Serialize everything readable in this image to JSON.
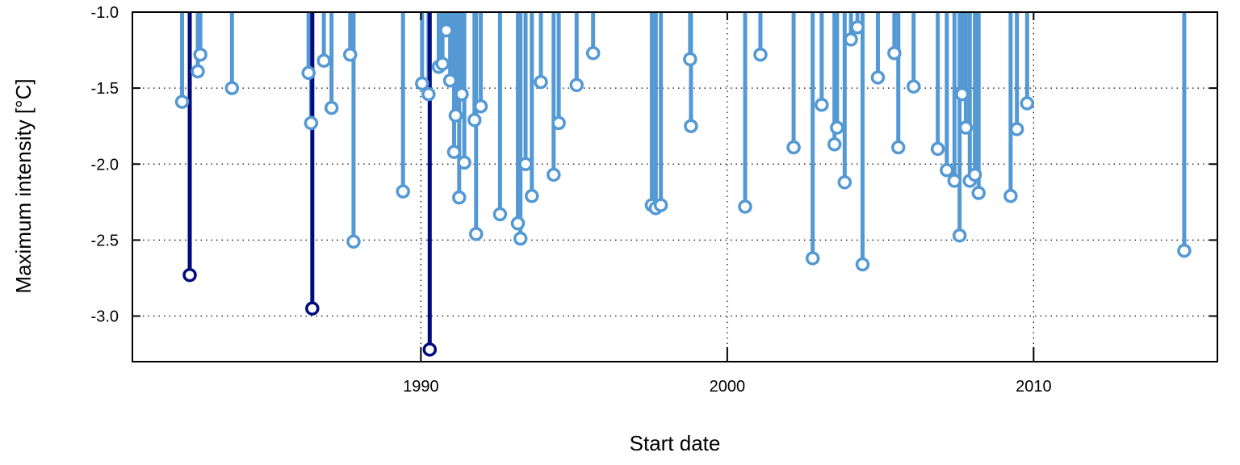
{
  "chart_data": {
    "type": "scatter",
    "style": "lollipop (stems from y=-1.0 down to each point)",
    "xlabel": "Start date",
    "ylabel": "Maximum intensity [°C]",
    "xlim": [
      "1980-08-01",
      "2015-12-31"
    ],
    "ylim": [
      -3.3,
      -1.0
    ],
    "x_ticks": [
      "1990",
      "2000",
      "2010"
    ],
    "y_ticks": [
      "-1.0",
      "-1.5",
      "-2.0",
      "-2.5",
      "-3.0"
    ],
    "grid": true,
    "legend": "none",
    "colors": {
      "events": "#5499d4",
      "top_events": "#000c7d"
    },
    "series": [
      {
        "points": [
          {
            "x": "1982-03-15",
            "y": -1.59
          },
          {
            "x": "1982-09-20",
            "y": -1.39
          },
          {
            "x": "1982-10-20",
            "y": -1.28
          },
          {
            "x": "1983-11-01",
            "y": -1.5
          },
          {
            "x": "1986-05-01",
            "y": -1.4
          },
          {
            "x": "1986-06-01",
            "y": -1.73
          },
          {
            "x": "1986-11-01",
            "y": -1.32
          },
          {
            "x": "1987-02-01",
            "y": -1.63
          },
          {
            "x": "1987-09-10",
            "y": -1.28
          },
          {
            "x": "1987-10-20",
            "y": -2.51
          },
          {
            "x": "1989-06-01",
            "y": -2.18
          },
          {
            "x": "1990-01-15",
            "y": -1.47
          },
          {
            "x": "1990-04-01",
            "y": -1.54
          },
          {
            "x": "1990-08-01",
            "y": -1.36
          },
          {
            "x": "1990-09-15",
            "y": -1.34
          },
          {
            "x": "1990-11-01",
            "y": -1.12
          },
          {
            "x": "1990-12-15",
            "y": -1.45
          },
          {
            "x": "1991-02-01",
            "y": -1.92
          },
          {
            "x": "1991-02-20",
            "y": -1.68
          },
          {
            "x": "1991-04-01",
            "y": -2.22
          },
          {
            "x": "1991-05-01",
            "y": -1.54
          },
          {
            "x": "1991-06-01",
            "y": -1.99
          },
          {
            "x": "1991-10-01",
            "y": -1.71
          },
          {
            "x": "1991-10-20",
            "y": -2.46
          },
          {
            "x": "1991-12-15",
            "y": -1.62
          },
          {
            "x": "1992-08-01",
            "y": -2.33
          },
          {
            "x": "1993-03-01",
            "y": -2.39
          },
          {
            "x": "1993-04-01",
            "y": -2.49
          },
          {
            "x": "1993-06-01",
            "y": -2.0
          },
          {
            "x": "1993-08-15",
            "y": -2.21
          },
          {
            "x": "1993-12-01",
            "y": -1.46
          },
          {
            "x": "1994-05-01",
            "y": -2.07
          },
          {
            "x": "1994-07-01",
            "y": -1.73
          },
          {
            "x": "1995-02-01",
            "y": -1.48
          },
          {
            "x": "1995-08-15",
            "y": -1.27
          },
          {
            "x": "1997-07-15",
            "y": -2.27
          },
          {
            "x": "1997-09-01",
            "y": -2.29
          },
          {
            "x": "1997-11-01",
            "y": -2.27
          },
          {
            "x": "1998-10-15",
            "y": -1.31
          },
          {
            "x": "1998-10-25",
            "y": -1.75
          },
          {
            "x": "2000-08-01",
            "y": -2.28
          },
          {
            "x": "2001-02-01",
            "y": -1.28
          },
          {
            "x": "2002-03-01",
            "y": -1.89
          },
          {
            "x": "2002-10-15",
            "y": -2.62
          },
          {
            "x": "2003-02-01",
            "y": -1.61
          },
          {
            "x": "2003-07-01",
            "y": -1.87
          },
          {
            "x": "2003-08-01",
            "y": -1.76
          },
          {
            "x": "2003-11-01",
            "y": -2.12
          },
          {
            "x": "2004-01-15",
            "y": -1.18
          },
          {
            "x": "2004-04-01",
            "y": -1.1
          },
          {
            "x": "2004-06-01",
            "y": -2.66
          },
          {
            "x": "2004-12-01",
            "y": -1.43
          },
          {
            "x": "2005-06-15",
            "y": -1.27
          },
          {
            "x": "2005-08-01",
            "y": -1.89
          },
          {
            "x": "2006-02-01",
            "y": -1.49
          },
          {
            "x": "2006-11-15",
            "y": -1.9
          },
          {
            "x": "2007-03-01",
            "y": -2.04
          },
          {
            "x": "2007-06-01",
            "y": -2.11
          },
          {
            "x": "2007-08-01",
            "y": -2.47
          },
          {
            "x": "2007-09-01",
            "y": -1.54
          },
          {
            "x": "2007-10-15",
            "y": -1.76
          },
          {
            "x": "2007-12-01",
            "y": -2.11
          },
          {
            "x": "2008-02-01",
            "y": -2.07
          },
          {
            "x": "2008-03-15",
            "y": -2.19
          },
          {
            "x": "2009-04-01",
            "y": -2.21
          },
          {
            "x": "2009-06-15",
            "y": -1.77
          },
          {
            "x": "2009-10-15",
            "y": -1.6
          },
          {
            "x": "2014-12-01",
            "y": -2.57
          }
        ]
      },
      {
        "points": [
          {
            "x": "1982-06-15",
            "y": -2.73
          },
          {
            "x": "1986-06-15",
            "y": -2.95
          },
          {
            "x": "1990-04-15",
            "y": -3.22
          }
        ]
      }
    ]
  }
}
